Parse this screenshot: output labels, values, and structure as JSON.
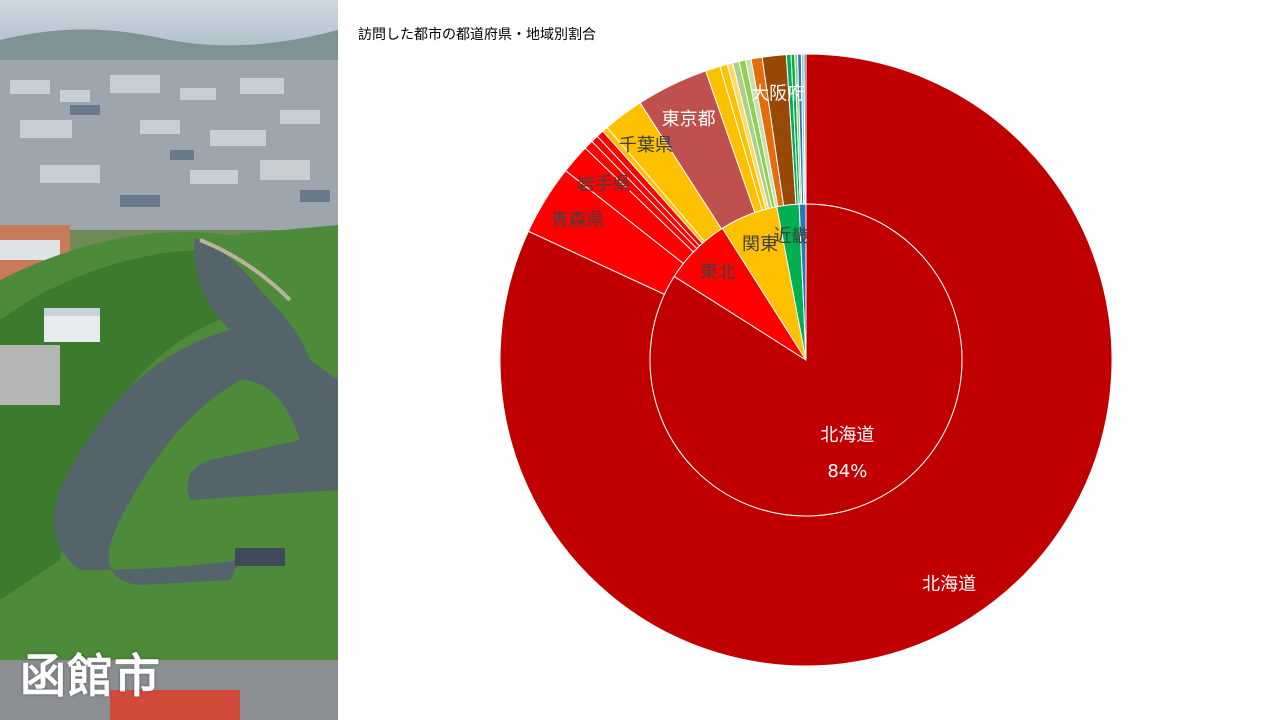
{
  "photo": {
    "caption": "函館市"
  },
  "chart_data": {
    "type": "pie",
    "title": "訪問した都市の都道府県・地域別割合",
    "inner_ring": [
      {
        "label": "北海道",
        "value": 84.0,
        "color": "#c00000",
        "show_label": true,
        "show_value": true,
        "value_text": "84%"
      },
      {
        "label": "東北",
        "value": 7.0,
        "color": "#ff0000",
        "show_label": true
      },
      {
        "label": "関東",
        "value": 6.0,
        "color": "#ffc000",
        "show_label": true
      },
      {
        "label": "近畿",
        "value": 2.3,
        "color": "#00b050",
        "show_label": true
      },
      {
        "label": "",
        "value": 0.7,
        "color": "#2e75b6",
        "show_label": false
      }
    ],
    "outer_ring": [
      {
        "label": "北海道",
        "value": 84.0,
        "color": "#c00000",
        "show_label": true
      },
      {
        "label": "青森県",
        "value": 3.8,
        "color": "#ff0000",
        "show_label": true
      },
      {
        "label": "岩手県",
        "value": 1.6,
        "color": "#ff0000",
        "show_label": true
      },
      {
        "label": "",
        "value": 0.5,
        "color": "#ff0000",
        "show_label": false
      },
      {
        "label": "",
        "value": 0.4,
        "color": "#ff0000",
        "show_label": false
      },
      {
        "label": "",
        "value": 0.4,
        "color": "#ff0000",
        "show_label": false
      },
      {
        "label": "",
        "value": 0.3,
        "color": "#ffc000",
        "show_label": false
      },
      {
        "label": "千葉県",
        "value": 2.2,
        "color": "#ffc000",
        "show_label": true
      },
      {
        "label": "東京都",
        "value": 3.9,
        "color": "#c0504d",
        "show_label": true
      },
      {
        "label": "",
        "value": 0.8,
        "color": "#ffc000",
        "show_label": false
      },
      {
        "label": "",
        "value": 0.4,
        "color": "#ffc000",
        "show_label": false
      },
      {
        "label": "",
        "value": 0.3,
        "color": "#ffd966",
        "show_label": false
      },
      {
        "label": "",
        "value": 0.35,
        "color": "#a9d18e",
        "show_label": false
      },
      {
        "label": "",
        "value": 0.35,
        "color": "#92d050",
        "show_label": false
      },
      {
        "label": "",
        "value": 0.3,
        "color": "#c5e0b4",
        "show_label": false
      },
      {
        "label": "",
        "value": 0.6,
        "color": "#e46c0a",
        "show_label": false
      },
      {
        "label": "大阪府",
        "value": 1.3,
        "color": "#984807",
        "show_label": true
      },
      {
        "label": "",
        "value": 0.25,
        "color": "#00b050",
        "show_label": false
      },
      {
        "label": "",
        "value": 0.2,
        "color": "#00b050",
        "show_label": false
      },
      {
        "label": "",
        "value": 0.15,
        "color": "#92d050",
        "show_label": false
      },
      {
        "label": "",
        "value": 0.2,
        "color": "#2e75b6",
        "show_label": false
      },
      {
        "label": "",
        "value": 0.15,
        "color": "#9dc3e6",
        "show_label": false
      },
      {
        "label": "",
        "value": 0.1,
        "color": "#1f4e79",
        "show_label": false
      }
    ],
    "label_color": "#ffffff",
    "label_color_dark": "#404040"
  }
}
